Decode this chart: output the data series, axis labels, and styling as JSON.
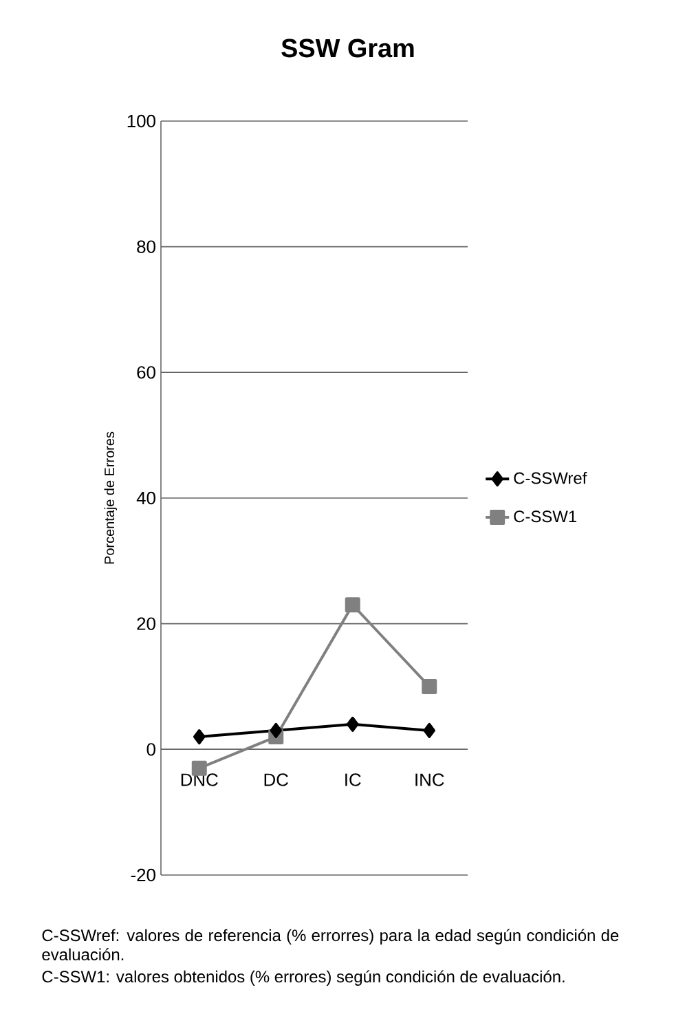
{
  "chart_data": {
    "type": "line",
    "title": "SSW Gram",
    "ylabel": "Porcentaje de Errores",
    "categories": [
      "DNC",
      "DC",
      "IC",
      "INC"
    ],
    "series": [
      {
        "name": "C-SSWref",
        "color": "#000000",
        "marker": "diamond",
        "values": [
          2,
          3,
          4,
          3
        ]
      },
      {
        "name": "C-SSW1",
        "color": "#808080",
        "marker": "square",
        "values": [
          -3,
          2,
          23,
          10
        ]
      }
    ],
    "ylim": [
      -20,
      100
    ],
    "yticks": [
      -20,
      0,
      20,
      40,
      60,
      80,
      100
    ],
    "grid": "y",
    "legend": "right",
    "line_style": "solid",
    "annotations": [
      "C-SSWref: valores de referencia (% errorres) para la edad según condición de evaluación.",
      "C-SSW1: valores obtenidos (% errores) según condición de evaluación."
    ]
  }
}
